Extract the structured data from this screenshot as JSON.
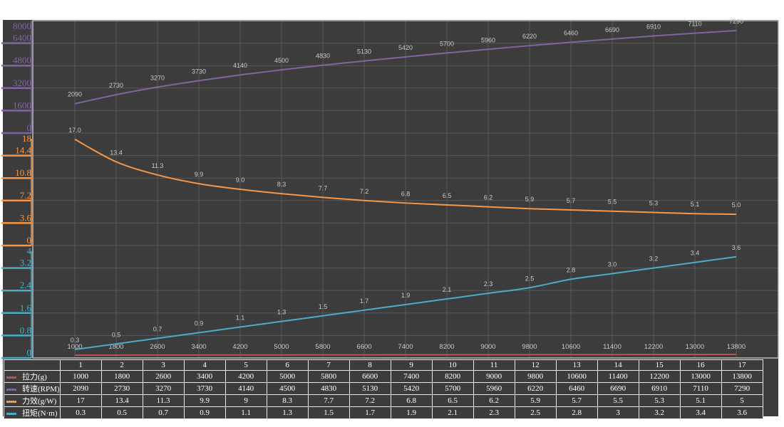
{
  "chart_data": {
    "type": "line",
    "categories": [
      "1",
      "2",
      "3",
      "4",
      "5",
      "6",
      "7",
      "8",
      "9",
      "10",
      "11",
      "12",
      "13",
      "14",
      "15",
      "16",
      "17"
    ],
    "series": [
      {
        "name": "拉力(g)",
        "color": "#c0504d",
        "labels": [
          "1000",
          "1800",
          "2600",
          "3400",
          "4200",
          "5000",
          "5800",
          "6600",
          "7400",
          "8200",
          "9000",
          "9800",
          "10600",
          "11400",
          "12200",
          "13000",
          "13800"
        ],
        "values": [
          1000,
          1800,
          2600,
          3400,
          4200,
          5000,
          5800,
          6600,
          7400,
          8200,
          9000,
          9800,
          10600,
          11400,
          12200,
          13000,
          13800
        ],
        "table": [
          "1000",
          "1800",
          "2600",
          "3400",
          "4200",
          "5000",
          "5800",
          "6600",
          "7400",
          "8200",
          "9000",
          "9800",
          "10600",
          "11400",
          "12200",
          "13000",
          "13800"
        ]
      },
      {
        "name": "转速(RPM)",
        "color": "#8064a2",
        "axis": {
          "min": 0,
          "max": 8000,
          "ticks": [
            "0",
            "1600",
            "3200",
            "4800",
            "6400",
            "8000"
          ]
        },
        "labels": [
          "2090",
          "2730",
          "3270",
          "3730",
          "4140",
          "4500",
          "4830",
          "5130",
          "5420",
          "5700",
          "5960",
          "6220",
          "6460",
          "6690",
          "6910",
          "7110",
          "7290"
        ],
        "values": [
          2090,
          2730,
          3270,
          3730,
          4140,
          4500,
          4830,
          5130,
          5420,
          5700,
          5960,
          6220,
          6460,
          6690,
          6910,
          7110,
          7290
        ],
        "table": [
          "2090",
          "2730",
          "3270",
          "3730",
          "4140",
          "4500",
          "4830",
          "5130",
          "5420",
          "5700",
          "5960",
          "6220",
          "6460",
          "6690",
          "6910",
          "7110",
          "7290"
        ]
      },
      {
        "name": "力效(g/W)",
        "color": "#f79646",
        "axis": {
          "min": 0,
          "max": 18,
          "ticks": [
            "0",
            "3.6",
            "7.2",
            "10.8",
            "14.4",
            "18"
          ]
        },
        "labels": [
          "17.0",
          "13.4",
          "11.3",
          "9.9",
          "9.0",
          "8.3",
          "7.7",
          "7.2",
          "6.8",
          "6.5",
          "6.2",
          "5.9",
          "5.7",
          "5.5",
          "5.3",
          "5.1",
          "5.0"
        ],
        "values": [
          17,
          13.4,
          11.3,
          9.9,
          9,
          8.3,
          7.7,
          7.2,
          6.8,
          6.5,
          6.2,
          5.9,
          5.7,
          5.5,
          5.3,
          5.1,
          5
        ],
        "table": [
          "17",
          "13.4",
          "11.3",
          "9.9",
          "9",
          "8.3",
          "7.7",
          "7.2",
          "6.8",
          "6.5",
          "6.2",
          "5.9",
          "5.7",
          "5.5",
          "5.3",
          "5.1",
          "5"
        ]
      },
      {
        "name": "扭矩(N·m)",
        "color": "#4bacc6",
        "axis": {
          "min": 0,
          "max": 4,
          "ticks": [
            "0",
            "0.8",
            "1.6",
            "2.4",
            "3.2",
            "4"
          ]
        },
        "labels": [
          "0.3",
          "0.5",
          "0.7",
          "0.9",
          "1.1",
          "1.3",
          "1.5",
          "1.7",
          "1.9",
          "2.1",
          "2.3",
          "2.5",
          "2.8",
          "3.0",
          "3.2",
          "3.4",
          "3.6"
        ],
        "values": [
          0.3,
          0.5,
          0.7,
          0.9,
          1.1,
          1.3,
          1.5,
          1.7,
          1.9,
          2.1,
          2.3,
          2.5,
          2.8,
          3.0,
          3.2,
          3.4,
          3.6
        ],
        "table": [
          "0.3",
          "0.5",
          "0.7",
          "0.9",
          "1.1",
          "1.3",
          "1.5",
          "1.7",
          "1.9",
          "2.1",
          "2.3",
          "2.5",
          "2.8",
          "3",
          "3.2",
          "3.4",
          "3.6"
        ]
      }
    ],
    "grid": true,
    "legend": "bottom data table"
  }
}
